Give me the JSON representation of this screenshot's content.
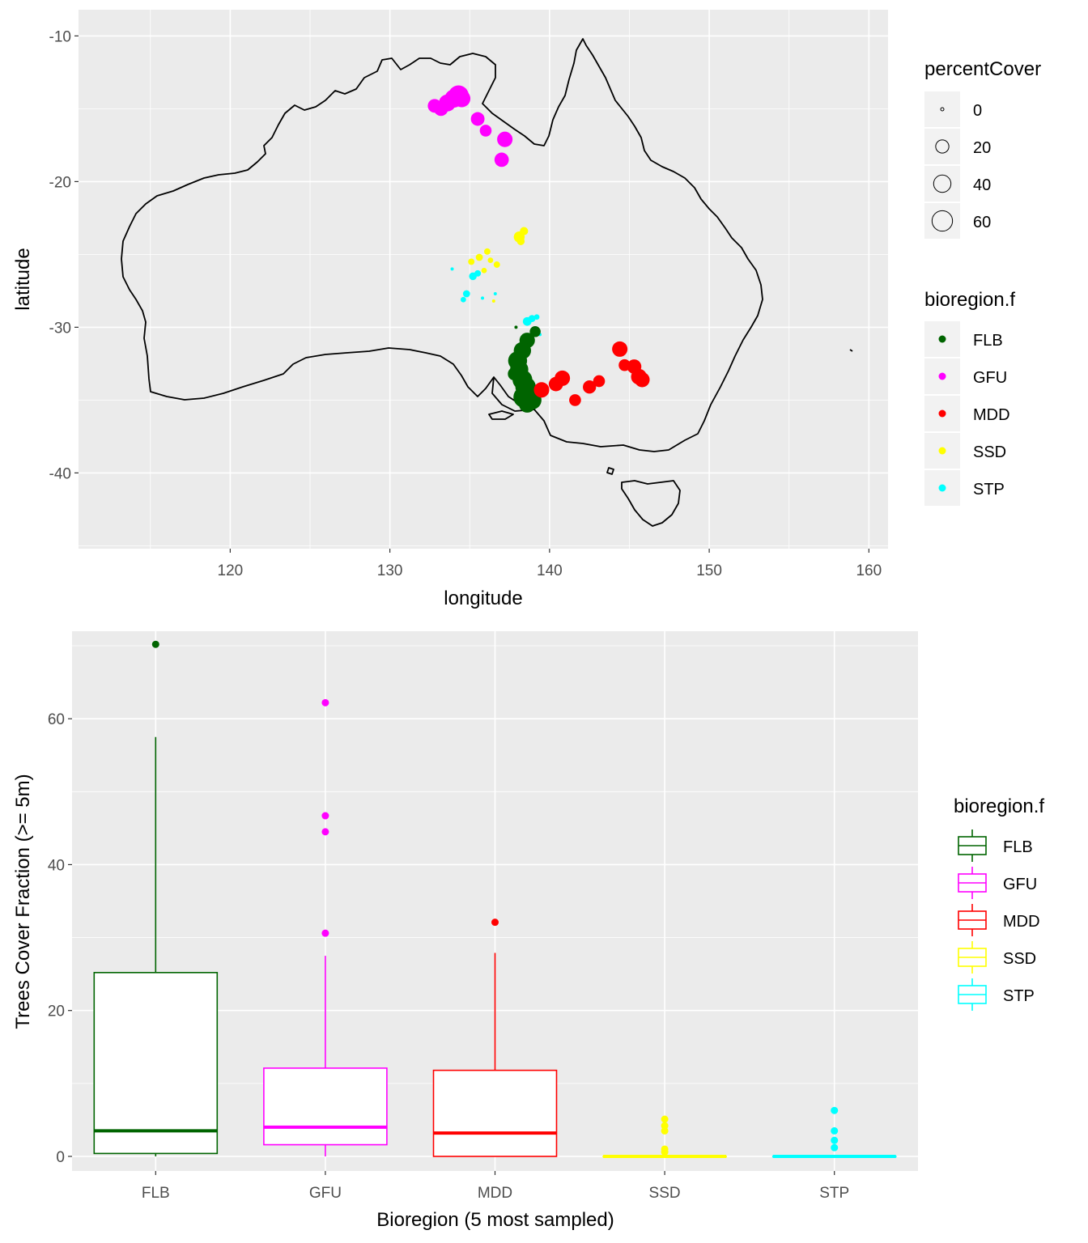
{
  "chart_data": [
    {
      "type": "scatter",
      "subtype": "map",
      "xlabel": "longitude",
      "ylabel": "latitude",
      "xlim": [
        110.5,
        161.2
      ],
      "ylim": [
        -45.2,
        -8.2
      ],
      "x_ticks": [
        120,
        130,
        140,
        150,
        160
      ],
      "y_ticks": [
        -10,
        -20,
        -30,
        -40
      ],
      "grid": true,
      "background": "#ebebeb",
      "legends": {
        "size": {
          "title": "percentCover",
          "breaks": [
            0,
            20,
            40,
            60
          ]
        },
        "color": {
          "title": "bioregion.f",
          "entries": [
            "FLB",
            "GFU",
            "MDD",
            "SSD",
            "STP"
          ]
        }
      },
      "colors": {
        "FLB": "#006400",
        "GFU": "#ff00ff",
        "MDD": "#ff0000",
        "SSD": "#ffff00",
        "STP": "#00ffff"
      },
      "series": [
        {
          "name": "GFU",
          "points": [
            [
              132.8,
              -14.8,
              22
            ],
            [
              133.6,
              -14.6,
              38
            ],
            [
              134.0,
              -14.3,
              45
            ],
            [
              134.3,
              -14.1,
              60
            ],
            [
              134.5,
              -14.3,
              40
            ],
            [
              133.2,
              -15.0,
              25
            ],
            [
              135.5,
              -15.7,
              22
            ],
            [
              136.0,
              -16.5,
              15
            ],
            [
              137.2,
              -17.1,
              30
            ],
            [
              137.0,
              -18.5,
              25
            ]
          ]
        },
        {
          "name": "SSD",
          "points": [
            [
              138.1,
              -23.8,
              12
            ],
            [
              138.4,
              -23.4,
              5
            ],
            [
              138.2,
              -24.1,
              4
            ],
            [
              135.1,
              -25.5,
              2
            ],
            [
              135.6,
              -25.2,
              3
            ],
            [
              136.1,
              -24.8,
              2
            ],
            [
              136.3,
              -25.4,
              1
            ],
            [
              136.7,
              -25.7,
              2
            ],
            [
              135.9,
              -26.1,
              1
            ],
            [
              136.5,
              -28.2,
              0
            ]
          ]
        },
        {
          "name": "STP",
          "points": [
            [
              133.9,
              -26.0,
              0
            ],
            [
              135.2,
              -26.5,
              4
            ],
            [
              135.5,
              -26.3,
              2
            ],
            [
              134.8,
              -27.7,
              3
            ],
            [
              134.6,
              -28.1,
              1
            ],
            [
              135.8,
              -28.0,
              0
            ],
            [
              136.6,
              -27.7,
              0
            ],
            [
              138.6,
              -29.6,
              6
            ],
            [
              138.9,
              -29.4,
              3
            ],
            [
              139.2,
              -29.3,
              1
            ],
            [
              139.4,
              -30.5,
              0
            ]
          ]
        },
        {
          "name": "FLB",
          "points": [
            [
              137.9,
              -30.0,
              0
            ],
            [
              139.1,
              -30.3,
              12
            ],
            [
              138.6,
              -30.9,
              30
            ],
            [
              138.3,
              -31.6,
              40
            ],
            [
              138.0,
              -32.3,
              50
            ],
            [
              138.1,
              -32.9,
              45
            ],
            [
              138.3,
              -33.6,
              55
            ],
            [
              138.5,
              -34.1,
              60
            ],
            [
              138.7,
              -34.6,
              70
            ],
            [
              138.9,
              -35.0,
              50
            ],
            [
              138.6,
              -35.3,
              35
            ],
            [
              137.8,
              -33.2,
              20
            ],
            [
              138.4,
              -34.8,
              65
            ]
          ]
        },
        {
          "name": "MDD",
          "points": [
            [
              139.5,
              -34.3,
              30
            ],
            [
              140.4,
              -33.9,
              25
            ],
            [
              140.8,
              -33.5,
              30
            ],
            [
              141.6,
              -35.0,
              15
            ],
            [
              142.5,
              -34.1,
              20
            ],
            [
              143.1,
              -33.7,
              15
            ],
            [
              144.4,
              -31.5,
              30
            ],
            [
              144.7,
              -32.6,
              15
            ],
            [
              145.3,
              -32.7,
              25
            ],
            [
              145.6,
              -33.4,
              32
            ],
            [
              145.8,
              -33.6,
              28
            ]
          ]
        }
      ]
    },
    {
      "type": "box",
      "xlabel": "Bioregion (5 most sampled)",
      "ylabel": "Trees Cover Fraction (>= 5m)",
      "categories": [
        "FLB",
        "GFU",
        "MDD",
        "SSD",
        "STP"
      ],
      "ylim": [
        -2,
        72
      ],
      "y_ticks": [
        0,
        20,
        40,
        60
      ],
      "grid": true,
      "background": "#ebebeb",
      "legend": {
        "title": "bioregion.f",
        "entries": [
          "FLB",
          "GFU",
          "MDD",
          "SSD",
          "STP"
        ]
      },
      "boxes": [
        {
          "name": "FLB",
          "color": "#006400",
          "min": 0,
          "q1": 0.4,
          "median": 3.5,
          "q3": 25.2,
          "max": 57.5,
          "outliers": [
            70.2
          ]
        },
        {
          "name": "GFU",
          "color": "#ff00ff",
          "min": 0,
          "q1": 1.6,
          "median": 4.0,
          "q3": 12.1,
          "max": 27.5,
          "outliers": [
            30.6,
            44.5,
            46.7,
            62.2
          ]
        },
        {
          "name": "MDD",
          "color": "#ff0000",
          "min": 0,
          "q1": 0,
          "median": 3.2,
          "q3": 11.8,
          "max": 27.9,
          "outliers": [
            32.1
          ]
        },
        {
          "name": "SSD",
          "color": "#ffff00",
          "min": 0,
          "q1": 0,
          "median": 0,
          "q3": 0,
          "max": 0,
          "outliers": [
            0.6,
            1.0,
            3.5,
            4.2,
            5.1
          ]
        },
        {
          "name": "STP",
          "color": "#00ffff",
          "min": 0,
          "q1": 0,
          "median": 0,
          "q3": 0,
          "max": 0,
          "outliers": [
            1.2,
            2.2,
            3.5,
            6.3
          ]
        }
      ]
    }
  ]
}
